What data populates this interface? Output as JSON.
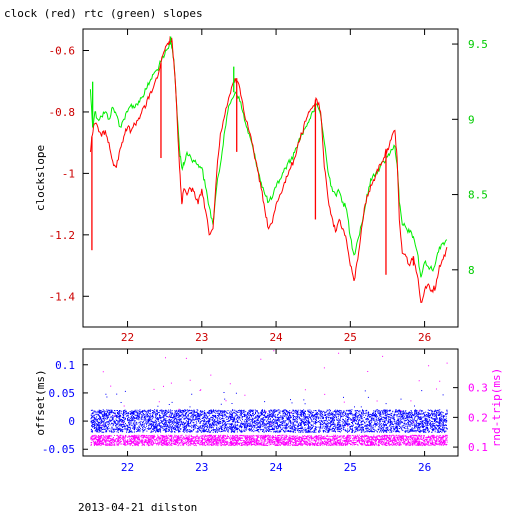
{
  "title": "clock (red) rtc (green) slopes",
  "footer": "2013-04-21 dilston",
  "colors": {
    "clock": "#ff0000",
    "rtc": "#00ee00",
    "offset": "#0000ff",
    "rnd_trip": "#ff00ff",
    "axis_left_top": "#cc0000",
    "axis_right_top": "#00cc00",
    "axis_left_bottom": "#0000ff",
    "axis_right_bottom": "#ff00ff"
  },
  "chart_data": [
    {
      "type": "line",
      "ylabel": "clockslope",
      "xlim": [
        21.4,
        26.45
      ],
      "ylim": [
        -1.5,
        -0.53
      ],
      "y2lim": [
        7.62,
        9.6
      ],
      "x_ticks": [
        22,
        23,
        24,
        25,
        26
      ],
      "y_ticks": [
        -0.6,
        -0.8,
        -1,
        -1.2,
        -1.4
      ],
      "y_tick_labels": [
        "-0.6",
        "-0.8",
        "-1",
        "-1.2",
        "-1.4"
      ],
      "y2_ticks": [
        9.5,
        9,
        8.5,
        8
      ],
      "y2_tick_labels": [
        "9.5",
        "9",
        "8.5",
        "8"
      ],
      "series": [
        {
          "name": "clock",
          "axis": "left",
          "x": [
            21.5,
            21.52,
            21.55,
            21.6,
            21.65,
            21.7,
            21.75,
            21.8,
            21.85,
            21.9,
            21.95,
            22.0,
            22.05,
            22.1,
            22.15,
            22.2,
            22.25,
            22.3,
            22.35,
            22.4,
            22.45,
            22.5,
            22.55,
            22.58,
            22.6,
            22.63,
            22.66,
            22.7,
            22.73,
            22.76,
            22.8,
            22.85,
            22.9,
            22.95,
            23.0,
            23.05,
            23.1,
            23.15,
            23.2,
            23.25,
            23.3,
            23.35,
            23.4,
            23.45,
            23.5,
            23.55,
            23.6,
            23.65,
            23.7,
            23.75,
            23.8,
            23.85,
            23.9,
            23.95,
            24.0,
            24.05,
            24.1,
            24.15,
            24.2,
            24.25,
            24.3,
            24.35,
            24.4,
            24.45,
            24.5,
            24.55,
            24.6,
            24.65,
            24.7,
            24.75,
            24.8,
            24.85,
            24.9,
            24.95,
            25.0,
            25.05,
            25.1,
            25.15,
            25.2,
            25.25,
            25.3,
            25.35,
            25.4,
            25.45,
            25.5,
            25.55,
            25.6,
            25.63,
            25.66,
            25.7,
            25.75,
            25.8,
            25.85,
            25.9,
            25.95,
            26.0,
            26.05,
            26.1,
            26.15,
            26.2,
            26.25,
            26.3
          ],
          "values": [
            -0.93,
            -0.88,
            -0.84,
            -0.85,
            -0.88,
            -0.86,
            -0.9,
            -0.96,
            -0.98,
            -0.92,
            -0.88,
            -0.85,
            -0.86,
            -0.84,
            -0.82,
            -0.79,
            -0.78,
            -0.74,
            -0.72,
            -0.69,
            -0.64,
            -0.6,
            -0.58,
            -0.56,
            -0.57,
            -0.66,
            -0.78,
            -0.98,
            -1.1,
            -1.05,
            -1.07,
            -1.05,
            -1.06,
            -1.1,
            -1.05,
            -1.12,
            -1.2,
            -1.18,
            -1.0,
            -0.87,
            -0.82,
            -0.77,
            -0.72,
            -0.69,
            -0.71,
            -0.77,
            -0.83,
            -0.87,
            -0.93,
            -0.99,
            -1.05,
            -1.12,
            -1.18,
            -1.16,
            -1.1,
            -1.07,
            -1.04,
            -1.01,
            -0.98,
            -0.95,
            -0.9,
            -0.87,
            -0.83,
            -0.8,
            -0.78,
            -0.76,
            -0.8,
            -0.98,
            -1.08,
            -1.14,
            -1.19,
            -1.15,
            -1.18,
            -1.22,
            -1.3,
            -1.35,
            -1.28,
            -1.18,
            -1.1,
            -1.06,
            -1.03,
            -1.0,
            -0.97,
            -0.95,
            -0.92,
            -0.89,
            -0.86,
            -0.95,
            -1.15,
            -1.26,
            -1.27,
            -1.3,
            -1.27,
            -1.33,
            -1.42,
            -1.38,
            -1.36,
            -1.38,
            -1.37,
            -1.3,
            -1.28,
            -1.24
          ]
        },
        {
          "name": "rtc",
          "axis": "right",
          "x": [
            21.5,
            21.53,
            21.56,
            21.6,
            21.65,
            21.7,
            21.75,
            21.8,
            21.85,
            21.9,
            21.95,
            22.0,
            22.05,
            22.1,
            22.15,
            22.2,
            22.25,
            22.3,
            22.35,
            22.4,
            22.45,
            22.5,
            22.55,
            22.58,
            22.6,
            22.63,
            22.66,
            22.7,
            22.73,
            22.76,
            22.8,
            22.85,
            22.9,
            22.95,
            23.0,
            23.05,
            23.1,
            23.15,
            23.2,
            23.25,
            23.3,
            23.35,
            23.4,
            23.45,
            23.5,
            23.55,
            23.6,
            23.65,
            23.7,
            23.75,
            23.8,
            23.85,
            23.9,
            23.95,
            24.0,
            24.05,
            24.1,
            24.15,
            24.2,
            24.25,
            24.3,
            24.35,
            24.4,
            24.45,
            24.5,
            24.55,
            24.6,
            24.65,
            24.7,
            24.75,
            24.8,
            24.85,
            24.9,
            24.95,
            25.0,
            25.05,
            25.1,
            25.15,
            25.2,
            25.25,
            25.3,
            25.35,
            25.4,
            25.45,
            25.5,
            25.55,
            25.6,
            25.63,
            25.66,
            25.7,
            25.75,
            25.8,
            25.85,
            25.9,
            25.95,
            26.0,
            26.05,
            26.1,
            26.15,
            26.2,
            26.25,
            26.3
          ],
          "values": [
            9.2,
            8.95,
            9.05,
            9.0,
            9.02,
            9.05,
            9.0,
            9.08,
            9.03,
            8.95,
            9.0,
            9.05,
            9.1,
            9.08,
            9.12,
            9.15,
            9.2,
            9.25,
            9.3,
            9.33,
            9.38,
            9.43,
            9.47,
            9.52,
            9.48,
            9.35,
            9.1,
            8.8,
            8.68,
            8.7,
            8.78,
            8.75,
            8.72,
            8.7,
            8.68,
            8.55,
            8.42,
            8.3,
            8.55,
            8.7,
            8.9,
            9.05,
            9.13,
            9.18,
            9.15,
            9.05,
            8.95,
            8.88,
            8.78,
            8.68,
            8.58,
            8.5,
            8.45,
            8.48,
            8.55,
            8.6,
            8.65,
            8.7,
            8.73,
            8.78,
            8.85,
            8.9,
            8.95,
            9.0,
            9.05,
            9.1,
            9.03,
            8.85,
            8.65,
            8.55,
            8.5,
            8.52,
            8.45,
            8.4,
            8.22,
            8.1,
            8.2,
            8.3,
            8.42,
            8.55,
            8.62,
            8.65,
            8.68,
            8.72,
            8.75,
            8.8,
            8.82,
            8.7,
            8.45,
            8.3,
            8.28,
            8.25,
            8.22,
            8.12,
            7.95,
            8.05,
            8.02,
            8.0,
            8.05,
            8.15,
            8.18,
            8.2
          ]
        }
      ],
      "spikes": [
        {
          "series": "clock",
          "x": 21.52,
          "value": -1.25
        },
        {
          "series": "clock",
          "x": 22.45,
          "value": -0.95
        },
        {
          "series": "clock",
          "x": 22.6,
          "value": -0.57
        },
        {
          "series": "clock",
          "x": 23.47,
          "value": -0.93
        },
        {
          "series": "clock",
          "x": 24.53,
          "value": -1.15
        },
        {
          "series": "clock",
          "x": 25.48,
          "value": -1.33
        },
        {
          "series": "clock",
          "x": 25.85,
          "value": -1.3
        },
        {
          "series": "rtc",
          "x": 21.53,
          "value": 9.25
        },
        {
          "series": "rtc",
          "x": 22.58,
          "value": 9.55
        },
        {
          "series": "rtc",
          "x": 23.43,
          "value": 9.35
        }
      ]
    },
    {
      "type": "scatter",
      "ylabel": "offset(ms)",
      "y2label": "rnd-trip(ms)",
      "xlim": [
        21.4,
        26.45
      ],
      "ylim": [
        -0.062,
        0.128
      ],
      "y2lim": [
        0.07,
        0.43
      ],
      "x_ticks": [
        22,
        23,
        24,
        25,
        26
      ],
      "y_ticks": [
        0.1,
        0.05,
        0,
        -0.05
      ],
      "y_tick_labels": [
        "0.1",
        "0.05",
        "0",
        "-0.05"
      ],
      "y2_ticks": [
        0.3,
        0.2,
        0.1
      ],
      "y2_tick_labels": [
        "0.3",
        "0.2",
        "0.1"
      ],
      "series": [
        {
          "name": "offset",
          "axis": "left",
          "x_range": [
            21.5,
            26.3
          ],
          "band": [
            -0.02,
            0.02
          ],
          "outliers": [
            0.05,
            0.07,
            -0.04
          ]
        },
        {
          "name": "rnd-trip",
          "axis": "right",
          "x_range": [
            21.5,
            26.3
          ],
          "band": [
            0.105,
            0.14
          ],
          "outliers": [
            0.38,
            0.33,
            0.3,
            0.27,
            0.22
          ]
        }
      ]
    }
  ]
}
